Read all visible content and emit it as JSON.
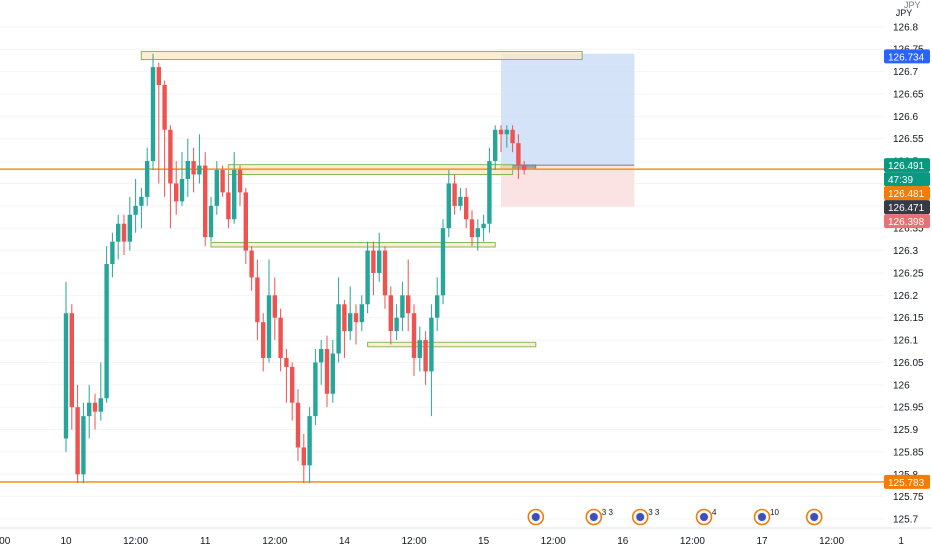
{
  "chart_data": {
    "type": "candlestick",
    "currency_label": "JPY",
    "axis_unit_partial": "JPY",
    "ylim": [
      125.68,
      126.86
    ],
    "y_ticks": [
      126.8,
      126.75,
      126.7,
      126.65,
      126.6,
      126.55,
      126.5,
      126.45,
      126.4,
      126.35,
      126.3,
      126.25,
      126.2,
      126.15,
      126.1,
      126.05,
      126.0,
      125.95,
      125.9,
      125.85,
      125.8,
      125.75,
      125.7
    ],
    "x_ticks": [
      {
        "label": ":00",
        "index": -12
      },
      {
        "label": "10",
        "index": 0
      },
      {
        "label": "12:00",
        "index": 12
      },
      {
        "label": "11",
        "index": 24
      },
      {
        "label": "12:00",
        "index": 36
      },
      {
        "label": "14",
        "index": 48
      },
      {
        "label": "12:00",
        "index": 60
      },
      {
        "label": "15",
        "index": 72
      },
      {
        "label": "12:00",
        "index": 84
      },
      {
        "label": "16",
        "index": 96
      },
      {
        "label": "12:00",
        "index": 108
      },
      {
        "label": "17",
        "index": 120
      },
      {
        "label": "12:00",
        "index": 132
      },
      {
        "label": "1",
        "index": 144
      }
    ],
    "colors": {
      "up": "#26a69a",
      "down": "#ef5350",
      "level": "#f59a23",
      "position_target": "#c9dcf5",
      "position_stop": "#fbe0e0",
      "zone_fill": "#fde7c6",
      "zone_border": "#86b85a"
    },
    "candles": [
      [
        125.88,
        126.16,
        125.85,
        126.23
      ],
      [
        126.16,
        125.95,
        125.9,
        126.18
      ],
      [
        125.95,
        125.8,
        125.78,
        126.0
      ],
      [
        125.8,
        125.93,
        125.78,
        125.96
      ],
      [
        125.93,
        125.96,
        125.88,
        126.0
      ],
      [
        125.96,
        125.94,
        125.9,
        125.98
      ],
      [
        125.94,
        125.97,
        125.92,
        126.05
      ],
      [
        125.97,
        126.27,
        125.96,
        126.31
      ],
      [
        126.27,
        126.32,
        126.24,
        126.34
      ],
      [
        126.32,
        126.36,
        126.28,
        126.38
      ],
      [
        126.36,
        126.32,
        126.29,
        126.38
      ],
      [
        126.32,
        126.38,
        126.3,
        126.42
      ],
      [
        126.38,
        126.4,
        126.34,
        126.46
      ],
      [
        126.4,
        126.42,
        126.35,
        126.44
      ],
      [
        126.42,
        126.5,
        126.4,
        126.53
      ],
      [
        126.5,
        126.71,
        126.48,
        126.74
      ],
      [
        126.71,
        126.67,
        126.45,
        126.72
      ],
      [
        126.67,
        126.57,
        126.42,
        126.68
      ],
      [
        126.57,
        126.45,
        126.35,
        126.58
      ],
      [
        126.45,
        126.41,
        126.38,
        126.5
      ],
      [
        126.41,
        126.46,
        126.4,
        126.52
      ],
      [
        126.46,
        126.5,
        126.42,
        126.55
      ],
      [
        126.5,
        126.47,
        126.43,
        126.53
      ],
      [
        126.47,
        126.49,
        126.45,
        126.56
      ],
      [
        126.49,
        126.33,
        126.31,
        126.52
      ],
      [
        126.33,
        126.4,
        126.32,
        126.42
      ],
      [
        126.4,
        126.48,
        126.38,
        126.5
      ],
      [
        126.48,
        126.43,
        126.42,
        126.49
      ],
      [
        126.43,
        126.37,
        126.35,
        126.47
      ],
      [
        126.37,
        126.48,
        126.36,
        126.52
      ],
      [
        126.48,
        126.43,
        126.4,
        126.49
      ],
      [
        126.43,
        126.3,
        126.27,
        126.44
      ],
      [
        126.3,
        126.24,
        126.21,
        126.31
      ],
      [
        126.24,
        126.14,
        126.1,
        126.28
      ],
      [
        126.14,
        126.06,
        126.03,
        126.16
      ],
      [
        126.06,
        126.2,
        126.05,
        126.28
      ],
      [
        126.2,
        126.15,
        126.1,
        126.24
      ],
      [
        126.15,
        126.06,
        126.03,
        126.17
      ],
      [
        126.06,
        126.04,
        125.96,
        126.08
      ],
      [
        126.04,
        125.96,
        125.92,
        126.05
      ],
      [
        125.96,
        125.86,
        125.83,
        125.99
      ],
      [
        125.86,
        125.82,
        125.78,
        125.89
      ],
      [
        125.82,
        125.93,
        125.78,
        125.95
      ],
      [
        125.93,
        126.05,
        125.91,
        126.08
      ],
      [
        126.05,
        126.08,
        126.0,
        126.1
      ],
      [
        126.08,
        125.98,
        125.95,
        126.11
      ],
      [
        125.98,
        126.07,
        125.96,
        126.1
      ],
      [
        126.07,
        126.18,
        126.05,
        126.24
      ],
      [
        126.18,
        126.12,
        126.06,
        126.19
      ],
      [
        126.12,
        126.16,
        126.1,
        126.22
      ],
      [
        126.16,
        126.14,
        126.09,
        126.18
      ],
      [
        126.14,
        126.18,
        126.12,
        126.2
      ],
      [
        126.18,
        126.3,
        126.16,
        126.32
      ],
      [
        126.3,
        126.25,
        126.2,
        126.32
      ],
      [
        126.25,
        126.3,
        126.23,
        126.34
      ],
      [
        126.3,
        126.2,
        126.17,
        126.31
      ],
      [
        126.2,
        126.12,
        126.09,
        126.22
      ],
      [
        126.12,
        126.15,
        126.1,
        126.18
      ],
      [
        126.15,
        126.2,
        126.12,
        126.23
      ],
      [
        126.2,
        126.16,
        126.12,
        126.28
      ],
      [
        126.16,
        126.06,
        126.02,
        126.18
      ],
      [
        126.06,
        126.1,
        126.03,
        126.13
      ],
      [
        126.1,
        126.03,
        126.0,
        126.12
      ],
      [
        126.03,
        126.15,
        125.93,
        126.18
      ],
      [
        126.15,
        126.2,
        126.12,
        126.24
      ],
      [
        126.2,
        126.35,
        126.18,
        126.37
      ],
      [
        126.35,
        126.45,
        126.33,
        126.48
      ],
      [
        126.45,
        126.4,
        126.38,
        126.47
      ],
      [
        126.4,
        126.42,
        126.39,
        126.44
      ],
      [
        126.42,
        126.37,
        126.35,
        126.44
      ],
      [
        126.37,
        126.33,
        126.31,
        126.39
      ],
      [
        126.33,
        126.35,
        126.3,
        126.37
      ],
      [
        126.35,
        126.36,
        126.32,
        126.38
      ],
      [
        126.36,
        126.5,
        126.34,
        126.53
      ],
      [
        126.5,
        126.57,
        126.48,
        126.58
      ],
      [
        126.57,
        126.56,
        126.52,
        126.58
      ],
      [
        126.56,
        126.57,
        126.53,
        126.58
      ],
      [
        126.57,
        126.54,
        126.52,
        126.58
      ],
      [
        126.54,
        126.49,
        126.46,
        126.56
      ],
      [
        126.49,
        126.48,
        126.47,
        126.5
      ]
    ],
    "zones": [
      {
        "start_index": 13,
        "end_index": 89,
        "low": 126.727,
        "high": 126.745
      },
      {
        "start_index": 28,
        "end_index": 77,
        "low": 126.47,
        "high": 126.492
      },
      {
        "start_index": 25,
        "end_index": 74,
        "low": 126.308,
        "high": 126.318
      },
      {
        "start_index": 52,
        "end_index": 81,
        "low": 126.085,
        "high": 126.095
      }
    ],
    "horizontal_levels": [
      126.482,
      125.783
    ],
    "position_tool": {
      "start_index": 75,
      "end_index": 98,
      "entry": 126.491,
      "target": 126.74,
      "stop": 126.398,
      "inner_start_index": 75,
      "inner_end_index": 81,
      "inner_low": 126.482
    },
    "event_markers": [
      {
        "index": 81,
        "badge": ""
      },
      {
        "index": 91,
        "badge": "3 3"
      },
      {
        "index": 99,
        "badge": "3 3"
      },
      {
        "index": 110,
        "badge": "4"
      },
      {
        "index": 120,
        "badge": "10"
      },
      {
        "index": 129,
        "badge": ""
      }
    ],
    "price_labels": [
      {
        "value": 126.734,
        "text": "126.734",
        "bg": "#2962ff"
      },
      {
        "value": 126.491,
        "text": "126.491",
        "bg": "#089981"
      },
      {
        "value": 126.481,
        "text": "47:39",
        "bg": "#089981"
      },
      {
        "value": 126.481,
        "text": "126.481",
        "bg": "#f57c00"
      },
      {
        "value": 126.471,
        "text": "126.471",
        "bg": "#363a45"
      },
      {
        "value": 126.398,
        "text": "126.398",
        "bg": "#e57373"
      },
      {
        "value": 125.783,
        "text": "125.783",
        "bg": "#f57c00"
      }
    ]
  }
}
